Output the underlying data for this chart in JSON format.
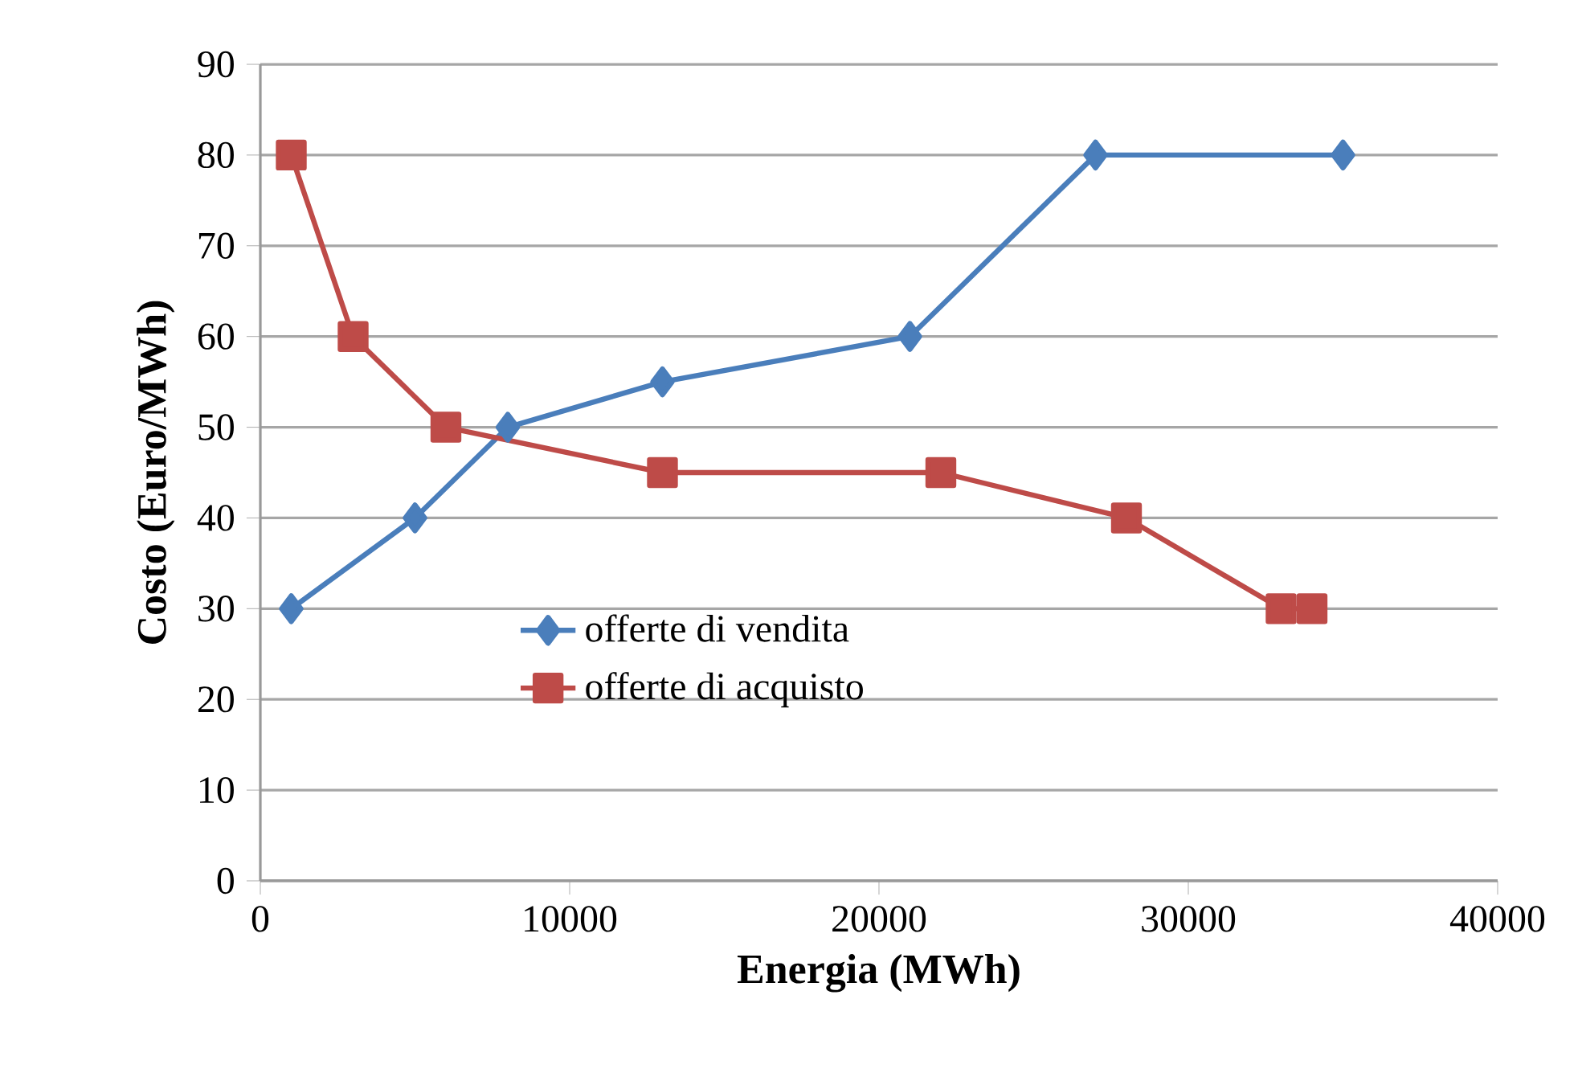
{
  "chart_data": {
    "type": "line",
    "xlabel": "Energia (MWh)",
    "ylabel": "Costo (Euro/MWh)",
    "xlim": [
      0,
      40000
    ],
    "xticks": [
      0,
      10000,
      20000,
      30000,
      40000
    ],
    "ylim": [
      0,
      90
    ],
    "yticks": [
      0,
      10,
      20,
      30,
      40,
      50,
      60,
      70,
      80,
      90
    ],
    "grid": "y",
    "legend": "center",
    "series": [
      {
        "name": "offerte di vendita",
        "color": "#4a7ebb",
        "marker": "diamond",
        "x": [
          1000,
          5000,
          8000,
          13000,
          21000,
          27000,
          35000
        ],
        "values": [
          30,
          40,
          50,
          55,
          60,
          80,
          80
        ]
      },
      {
        "name": "offerte di acquisto",
        "color": "#be4b48",
        "marker": "square",
        "x": [
          1000,
          3000,
          6000,
          13000,
          22000,
          28000,
          33000,
          34000
        ],
        "values": [
          80,
          60,
          50,
          45,
          45,
          40,
          30,
          30
        ]
      }
    ]
  }
}
